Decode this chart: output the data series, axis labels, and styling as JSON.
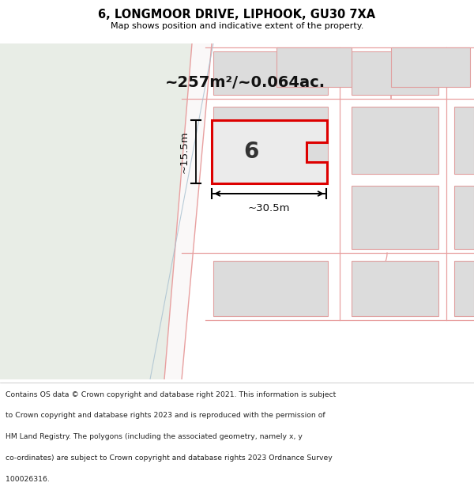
{
  "title": "6, LONGMOOR DRIVE, LIPHOOK, GU30 7XA",
  "subtitle": "Map shows position and indicative extent of the property.",
  "area_text": "~257m²/~0.064ac.",
  "width_text": "~30.5m",
  "height_text": "~15.5m",
  "number_label": "6",
  "footer_lines": [
    "Contains OS data © Crown copyright and database right 2021. This information is subject",
    "to Crown copyright and database rights 2023 and is reproduced with the permission of",
    "HM Land Registry. The polygons (including the associated geometry, namely x, y",
    "co-ordinates) are subject to Crown copyright and database rights 2023 Ordnance Survey",
    "100026316."
  ],
  "map_white": "#ffffff",
  "map_bg": "#faf8f8",
  "left_green": "#e8ede6",
  "road_pink": "#f2b8b8",
  "road_line": "#e8a0a0",
  "building_fill": "#dcdcdc",
  "building_border": "#e0a0a0",
  "prop_fill": "#ebebeb",
  "prop_border": "#dd0000",
  "diag_line": "#a8c0d0",
  "title_color": "#000000",
  "footer_color": "#222222"
}
